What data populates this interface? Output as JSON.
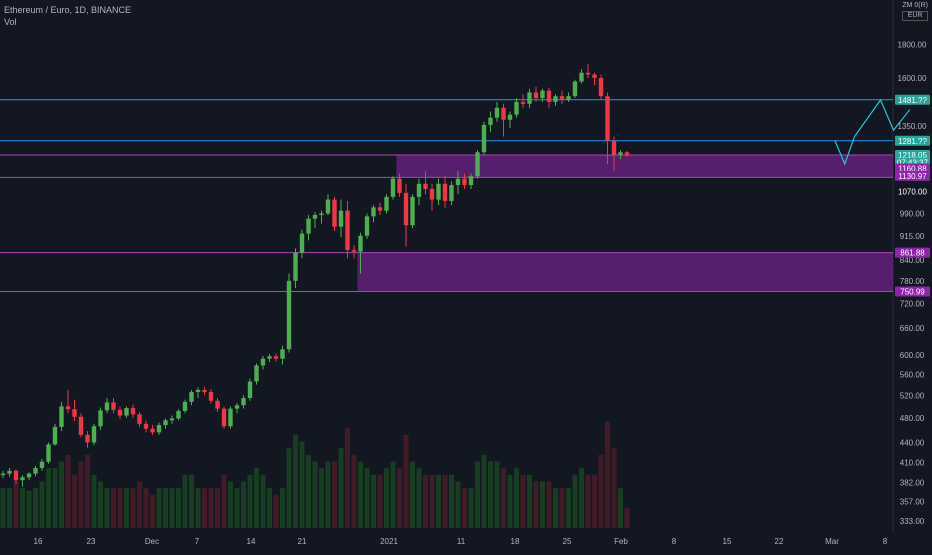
{
  "header": {
    "symbol": "Ethereum / Euro, 1D, BINANCE",
    "volume_label": "Vol",
    "currency_top": "ZM 0(R)",
    "currency": "EUR"
  },
  "colors": {
    "background": "#131722",
    "up": "#26a69a",
    "up_candle": "#4caf50",
    "down_candle": "#f23645",
    "zone": "#8e24aa",
    "hline": "#2196f3",
    "projection": "#26c6da",
    "axis_text": "#b2b5be"
  },
  "chart_data": {
    "type": "candlestick",
    "title": "Ethereum / Euro, 1D, BINANCE",
    "y_scale": "log",
    "ylim": [
      325,
      2050
    ],
    "x_ticks": [
      "16",
      "23",
      "Dec",
      "7",
      "14",
      "21",
      "2021",
      "11",
      "18",
      "25",
      "Feb",
      "8",
      "15",
      "22",
      "Mar",
      "8"
    ],
    "y_ticks": [
      "1800.00",
      "1600.00",
      "1350.00",
      "990.00",
      "915.00",
      "840.00",
      "780.00",
      "720.00",
      "660.00",
      "600.00",
      "560.00",
      "520.00",
      "480.00",
      "440.00",
      "410.00",
      "382.00",
      "357.00",
      "333.00"
    ],
    "price_labels": [
      {
        "text": "1481.??",
        "price": 1481,
        "color": "#26a69a"
      },
      {
        "text": "1281.??",
        "price": 1281,
        "color": "#26a69a"
      },
      {
        "text": "1218.05",
        "price": 1218.05,
        "color": "#26a69a"
      },
      {
        "text": "07:43:37",
        "price": 1185,
        "color": "#26a69a"
      },
      {
        "text": "1160.88",
        "price": 1160.88,
        "color": "#8e24aa"
      },
      {
        "text": "1130.97",
        "price": 1130.97,
        "color": "#8e24aa"
      },
      {
        "text": "1070.00",
        "price": 1070,
        "color": "#131722"
      },
      {
        "text": "861.88",
        "price": 861.88,
        "color": "#8e24aa"
      },
      {
        "text": "750.99",
        "price": 750.99,
        "color": "#8e24aa"
      }
    ],
    "horizontal_lines": [
      1481,
      1281
    ],
    "zones": [
      {
        "from_index": 61,
        "top": 1218,
        "bottom": 1125
      },
      {
        "from_index": 55,
        "top": 861.88,
        "bottom": 750.99
      }
    ],
    "projection_path": [
      [
        128,
        1281
      ],
      [
        129.5,
        1180
      ],
      [
        131,
        1300
      ],
      [
        135,
        1480
      ],
      [
        137,
        1330
      ],
      [
        139.5,
        1430
      ]
    ],
    "candles": [
      [
        392,
        398,
        388,
        394,
        0.3
      ],
      [
        394,
        402,
        390,
        398,
        0.3
      ],
      [
        398,
        400,
        380,
        385,
        0.35
      ],
      [
        385,
        392,
        376,
        389,
        0.3
      ],
      [
        389,
        396,
        385,
        394,
        0.28
      ],
      [
        394,
        405,
        390,
        402,
        0.3
      ],
      [
        402,
        415,
        398,
        411,
        0.35
      ],
      [
        411,
        440,
        408,
        437,
        0.45
      ],
      [
        437,
        470,
        435,
        465,
        0.45
      ],
      [
        465,
        508,
        458,
        500,
        0.5
      ],
      [
        500,
        530,
        488,
        495,
        0.55
      ],
      [
        495,
        512,
        475,
        482,
        0.4
      ],
      [
        482,
        488,
        448,
        452,
        0.5
      ],
      [
        452,
        458,
        432,
        440,
        0.55
      ],
      [
        440,
        470,
        436,
        466,
        0.4
      ],
      [
        466,
        498,
        460,
        493,
        0.35
      ],
      [
        493,
        515,
        488,
        507,
        0.3
      ],
      [
        507,
        515,
        488,
        494,
        0.3
      ],
      [
        494,
        500,
        478,
        484,
        0.3
      ],
      [
        484,
        500,
        480,
        497,
        0.3
      ],
      [
        497,
        503,
        480,
        486,
        0.3
      ],
      [
        486,
        490,
        465,
        470,
        0.35
      ],
      [
        470,
        476,
        456,
        462,
        0.3
      ],
      [
        462,
        468,
        452,
        456,
        0.25
      ],
      [
        456,
        472,
        452,
        468,
        0.3
      ],
      [
        468,
        479,
        462,
        476,
        0.3
      ],
      [
        476,
        484,
        470,
        479,
        0.3
      ],
      [
        479,
        495,
        476,
        492,
        0.3
      ],
      [
        492,
        512,
        488,
        508,
        0.4
      ],
      [
        508,
        530,
        502,
        526,
        0.4
      ],
      [
        526,
        535,
        515,
        530,
        0.3
      ],
      [
        530,
        536,
        520,
        526,
        0.3
      ],
      [
        526,
        532,
        505,
        510,
        0.3
      ],
      [
        510,
        515,
        490,
        496,
        0.3
      ],
      [
        496,
        500,
        462,
        466,
        0.4
      ],
      [
        466,
        500,
        462,
        496,
        0.35
      ],
      [
        496,
        506,
        488,
        502,
        0.3
      ],
      [
        502,
        520,
        496,
        515,
        0.35
      ],
      [
        515,
        552,
        510,
        546,
        0.4
      ],
      [
        546,
        582,
        540,
        578,
        0.45
      ],
      [
        578,
        598,
        570,
        592,
        0.4
      ],
      [
        592,
        602,
        585,
        597,
        0.3
      ],
      [
        597,
        603,
        586,
        592,
        0.25
      ],
      [
        592,
        620,
        580,
        612,
        0.3
      ],
      [
        612,
        800,
        605,
        780,
        0.6
      ],
      [
        780,
        875,
        760,
        862,
        0.7
      ],
      [
        862,
        935,
        845,
        922,
        0.65
      ],
      [
        922,
        985,
        900,
        972,
        0.55
      ],
      [
        972,
        995,
        940,
        985,
        0.5
      ],
      [
        985,
        1000,
        955,
        990,
        0.45
      ],
      [
        990,
        1060,
        985,
        1040,
        0.5
      ],
      [
        1040,
        1050,
        930,
        945,
        0.5
      ],
      [
        945,
        1040,
        910,
        1000,
        0.6
      ],
      [
        1000,
        1035,
        845,
        870,
        0.75
      ],
      [
        870,
        885,
        845,
        865,
        0.55
      ],
      [
        865,
        925,
        800,
        915,
        0.5
      ],
      [
        915,
        990,
        905,
        980,
        0.45
      ],
      [
        980,
        1020,
        960,
        1012,
        0.4
      ],
      [
        1012,
        1030,
        985,
        1000,
        0.4
      ],
      [
        1000,
        1060,
        990,
        1050,
        0.45
      ],
      [
        1050,
        1130,
        1040,
        1120,
        0.5
      ],
      [
        1120,
        1140,
        1050,
        1065,
        0.45
      ],
      [
        1065,
        1100,
        880,
        950,
        0.7
      ],
      [
        950,
        1060,
        940,
        1050,
        0.5
      ],
      [
        1050,
        1120,
        1020,
        1100,
        0.45
      ],
      [
        1100,
        1150,
        1060,
        1080,
        0.4
      ],
      [
        1080,
        1100,
        1000,
        1040,
        0.4
      ],
      [
        1040,
        1120,
        1020,
        1100,
        0.4
      ],
      [
        1100,
        1130,
        1010,
        1035,
        0.4
      ],
      [
        1035,
        1110,
        1020,
        1095,
        0.4
      ],
      [
        1095,
        1150,
        1060,
        1120,
        0.35
      ],
      [
        1120,
        1140,
        1080,
        1095,
        0.3
      ],
      [
        1095,
        1140,
        1080,
        1130,
        0.3
      ],
      [
        1130,
        1240,
        1120,
        1230,
        0.5
      ],
      [
        1230,
        1370,
        1220,
        1355,
        0.55
      ],
      [
        1355,
        1420,
        1320,
        1390,
        0.5
      ],
      [
        1390,
        1470,
        1370,
        1440,
        0.5
      ],
      [
        1440,
        1460,
        1300,
        1380,
        0.45
      ],
      [
        1380,
        1420,
        1340,
        1405,
        0.4
      ],
      [
        1405,
        1490,
        1390,
        1470,
        0.45
      ],
      [
        1470,
        1510,
        1440,
        1460,
        0.4
      ],
      [
        1460,
        1540,
        1440,
        1520,
        0.4
      ],
      [
        1520,
        1550,
        1470,
        1490,
        0.35
      ],
      [
        1490,
        1540,
        1470,
        1530,
        0.35
      ],
      [
        1530,
        1545,
        1440,
        1470,
        0.35
      ],
      [
        1470,
        1510,
        1450,
        1500,
        0.3
      ],
      [
        1500,
        1530,
        1460,
        1480,
        0.3
      ],
      [
        1480,
        1520,
        1470,
        1500,
        0.3
      ],
      [
        1500,
        1590,
        1490,
        1580,
        0.4
      ],
      [
        1580,
        1650,
        1570,
        1630,
        0.45
      ],
      [
        1630,
        1680,
        1600,
        1620,
        0.4
      ],
      [
        1620,
        1630,
        1560,
        1600,
        0.4
      ],
      [
        1600,
        1620,
        1480,
        1500,
        0.55
      ],
      [
        1500,
        1520,
        1180,
        1280,
        0.8
      ],
      [
        1280,
        1300,
        1150,
        1220,
        0.6
      ],
      [
        1220,
        1240,
        1200,
        1230,
        0.3
      ],
      [
        1230,
        1235,
        1210,
        1218,
        0.15
      ]
    ]
  }
}
